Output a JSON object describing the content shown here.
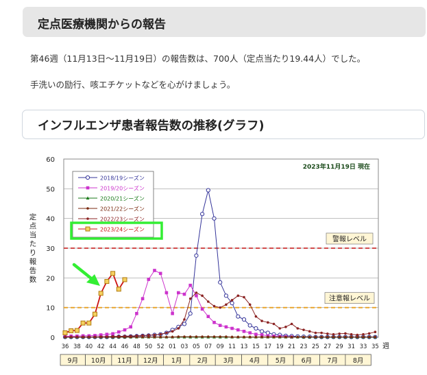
{
  "section1": {
    "title": "定点医療機関からの報告"
  },
  "report": {
    "line1": "第46週（11月13日〜11月19日）の報告数は、700人（定点当たり19.44人）でした。",
    "line2": "手洗いの励行、咳エチケットなどを心がけましょう。"
  },
  "section2": {
    "title": "インフルエンザ患者報告数の推移(グラフ)"
  },
  "chart_data": {
    "type": "line",
    "title": "",
    "date_note": "2023年11月19日 現在",
    "xlabel": "週",
    "ylabel": "定点当たり報告数",
    "ylim": [
      0,
      60
    ],
    "y_ticks": [
      0,
      10,
      20,
      30,
      40,
      50,
      60
    ],
    "x_ticks": [
      "36",
      "38",
      "40",
      "42",
      "44",
      "46",
      "48",
      "50",
      "52",
      "01",
      "03",
      "05",
      "07",
      "09",
      "11",
      "13",
      "15",
      "17",
      "19",
      "21",
      "23",
      "25",
      "27",
      "29",
      "31",
      "33",
      "35"
    ],
    "month_labels": [
      "9月",
      "10月",
      "11月",
      "12月",
      "1月",
      "2月",
      "3月",
      "4月",
      "5月",
      "6月",
      "7月",
      "8月"
    ],
    "thresholds": [
      {
        "label": "警報レベル",
        "value": 30,
        "color": "#cc3333"
      },
      {
        "label": "注意報レベル",
        "value": 10,
        "color": "#e8a020"
      }
    ],
    "legend_placement": "top-left",
    "grid": true,
    "series": [
      {
        "name": "2018/19シーズン",
        "color": "#333399",
        "marker": "circle-open",
        "values": [
          0.1,
          0.1,
          0.1,
          0.1,
          0.1,
          0.1,
          0.1,
          0.1,
          0.1,
          0.2,
          0.2,
          0.3,
          0.4,
          0.5,
          0.6,
          0.8,
          1,
          1.5,
          2.5,
          3.5,
          4.5,
          8,
          27.5,
          41.5,
          49.5,
          40,
          18.5,
          14,
          11.5,
          7,
          6,
          4,
          3,
          2,
          1.5,
          1,
          0.8,
          0.5,
          0.4,
          0.3,
          0.2,
          0.2,
          0.1,
          0.1,
          0.1,
          0.1,
          0.1,
          0.1,
          0.1,
          0.1,
          0.1,
          0.1,
          0.1
        ]
      },
      {
        "name": "2019/20シーズン",
        "color": "#cc33cc",
        "marker": "square",
        "values": [
          0.3,
          0.4,
          0.4,
          0.5,
          0.5,
          0.6,
          0.8,
          1,
          1.2,
          1.8,
          2.5,
          3.5,
          8,
          13,
          19.5,
          22.5,
          21.5,
          15,
          8,
          15,
          14.5,
          17.5,
          14,
          9.5,
          7,
          5,
          4,
          3.5,
          3,
          2.5,
          2,
          1.5,
          1,
          0.8,
          0.5,
          0.4,
          0.3,
          0.2,
          0.1
        ]
      },
      {
        "name": "2020/21シーズン",
        "color": "#1a7a1a",
        "marker": "triangle",
        "values": [
          0.1,
          0.1,
          0.1,
          0.1,
          0.1,
          0.1,
          0.1,
          0.1,
          0.1,
          0.1,
          0.1,
          0.1,
          0.1,
          0.1,
          0.1,
          0.1,
          0.1,
          0.1,
          0.1,
          0.1,
          0.1,
          0.1,
          0.1,
          0.1,
          0.1,
          0.1,
          0.1,
          0.1,
          0.1,
          0.1,
          0.1,
          0.1,
          0.1,
          0.1,
          0.1,
          0.1,
          0.1,
          0.1,
          0.1,
          0.1,
          0.1,
          0.1,
          0.1,
          0.1,
          0.1,
          0.1,
          0.1,
          0.1,
          0.1,
          0.1,
          0.1,
          0.1,
          0.1
        ]
      },
      {
        "name": "2021/22シーズン",
        "color": "#7a2a10",
        "marker": "dot",
        "values": [
          0.1,
          0.1,
          0.1,
          0.1,
          0.1,
          0.1,
          0.1,
          0.1,
          0.1,
          0.1,
          0.1,
          0.1,
          0.1,
          0.1,
          0.1,
          0.1,
          0.1,
          0.1,
          0.1,
          0.2,
          0.2,
          0.2,
          0.2,
          0.2,
          0.2,
          0.2,
          0.2,
          0.2,
          0.1,
          0.1,
          0.1,
          0.1,
          0.1,
          0.1,
          0.1,
          0.1,
          0.1,
          0.1,
          0.1,
          0.1,
          0.1,
          0.1,
          0.1,
          0.1,
          0.1,
          0.1,
          0.1,
          0.1,
          0.1,
          0.1,
          0.1,
          0.1,
          0.1
        ]
      },
      {
        "name": "2022/23シーズン",
        "color": "#8b2323",
        "marker": "dot",
        "values": [
          0.1,
          0.1,
          0.1,
          0.1,
          0.1,
          0.1,
          0.2,
          0.2,
          0.3,
          0.3,
          0.4,
          0.4,
          0.5,
          0.6,
          0.7,
          0.8,
          1,
          1.5,
          2,
          3,
          6,
          13,
          15,
          14,
          12,
          10.5,
          10,
          11,
          12.5,
          14,
          13.5,
          11,
          7,
          5.5,
          5,
          4.5,
          3,
          3.5,
          4.5,
          3,
          2.5,
          2,
          1.5,
          1.5,
          1.2,
          1,
          1.2,
          1.3,
          1,
          0.8,
          1,
          1.3,
          1.8
        ]
      },
      {
        "name": "2023/24シーズン",
        "color": "#cc1111",
        "marker": "square-gold",
        "values": [
          1.5,
          2.2,
          2.3,
          4.8,
          4.8,
          7.8,
          14.8,
          18.8,
          21.5,
          16.2,
          19.4
        ]
      }
    ]
  }
}
